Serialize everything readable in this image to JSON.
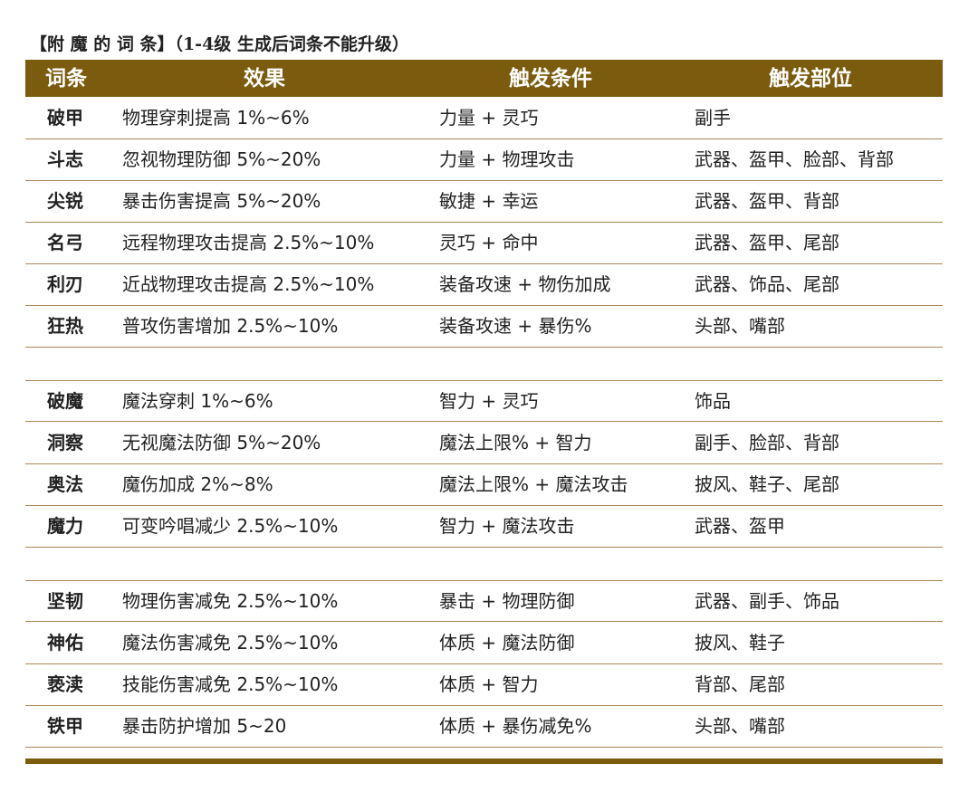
{
  "table": {
    "title": "【附 魔 的 词 条】（1-4级 生成后词条不能升级）",
    "headers": [
      "词条",
      "效果",
      "触发条件",
      "触发部位"
    ],
    "groups": [
      [
        [
          "破甲",
          "物理穿刺提高 1%~6%",
          "力量 + 灵巧",
          "副手"
        ],
        [
          "斗志",
          "忽视物理防御 5%~20%",
          "力量 + 物理攻击",
          "武器、盔甲、脸部、背部"
        ],
        [
          "尖锐",
          "暴击伤害提高 5%~20%",
          "敏捷 + 幸运",
          "武器、盔甲、背部"
        ],
        [
          "名弓",
          "远程物理攻击提高 2.5%~10%",
          "灵巧 + 命中",
          "武器、盔甲、尾部"
        ],
        [
          "利刃",
          "近战物理攻击提高 2.5%~10%",
          "装备攻速 + 物伤加成",
          "武器、饰品、尾部"
        ],
        [
          "狂热",
          "普攻伤害增加 2.5%~10%",
          "装备攻速 + 暴伤%",
          "头部、嘴部"
        ]
      ],
      [
        [
          "破魔",
          "魔法穿刺 1%~6%",
          "智力 + 灵巧",
          "饰品"
        ],
        [
          "洞察",
          "无视魔法防御 5%~20%",
          "魔法上限% + 智力",
          "副手、脸部、背部"
        ],
        [
          "奥法",
          "魔伤加成 2%~8%",
          "魔法上限% + 魔法攻击",
          "披风、鞋子、尾部"
        ],
        [
          "魔力",
          "可变吟唱减少 2.5%~10%",
          "智力 + 魔法攻击",
          "武器、盔甲"
        ]
      ],
      [
        [
          "坚韧",
          "物理伤害减免 2.5%~10%",
          "暴击 + 物理防御",
          "武器、副手、饰品"
        ],
        [
          "神佑",
          "魔法伤害减免 2.5%~10%",
          "体质 + 魔法防御",
          "披风、鞋子"
        ],
        [
          "亵渎",
          "技能伤害减免 2.5%~10%",
          "体质 + 智力",
          "背部、尾部"
        ],
        [
          "铁甲",
          "暴击防护增加 5~20",
          "体质 + 暴伤减免%",
          "头部、嘴部"
        ]
      ]
    ]
  }
}
